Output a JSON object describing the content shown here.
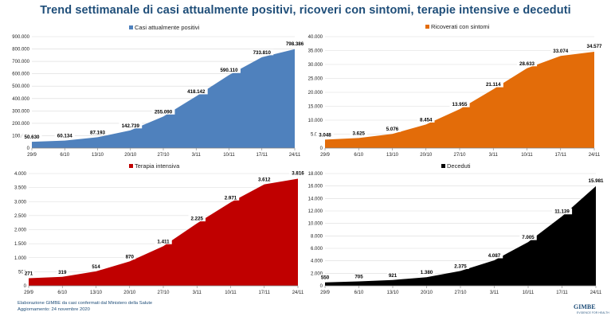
{
  "title": "Trend settimanale di casi attualmente positivi, ricoveri con sintomi, terapie intensive e deceduti",
  "footer": {
    "line1": "Elaborazione GIMBE da casi confermati dal Ministero della Salute",
    "line2": "Aggiornamento:  24 novembre 2020"
  },
  "logo": {
    "text": "GIMBE",
    "sub": "EVIDENCE FOR HEALTH"
  },
  "chart_data": [
    {
      "type": "area",
      "series_name": "Casi attualmente positivi",
      "color": "#4f81bd",
      "categories": [
        "29/9",
        "6/10",
        "13/10",
        "20/10",
        "27/10",
        "3/11",
        "10/11",
        "17/11",
        "24/11"
      ],
      "values": [
        50630,
        60134,
        87193,
        142739,
        255090,
        418142,
        590110,
        733810,
        798386
      ],
      "value_labels": [
        "50.630",
        "60.134",
        "87.193",
        "142.739",
        "255.090",
        "418.142",
        "590.110",
        "733.810",
        "798.386"
      ],
      "ylim": [
        0,
        900000
      ],
      "yticks": [
        0,
        100000,
        200000,
        300000,
        400000,
        500000,
        600000,
        700000,
        800000,
        900000
      ],
      "ytick_labels": [
        "0",
        "100.000",
        "200.000",
        "300.000",
        "400.000",
        "500.000",
        "600.000",
        "700.000",
        "800.000",
        "900.000"
      ]
    },
    {
      "type": "area",
      "series_name": "Ricoverati con sintomi",
      "color": "#e36c09",
      "categories": [
        "29/9",
        "6/10",
        "13/10",
        "20/10",
        "27/10",
        "3/11",
        "10/11",
        "17/11",
        "24/11"
      ],
      "values": [
        3048,
        3625,
        5076,
        8454,
        13955,
        21114,
        28633,
        33074,
        34577
      ],
      "value_labels": [
        "3.048",
        "3.625",
        "5.076",
        "8.454",
        "13.955",
        "21.114",
        "28.633",
        "33.074",
        "34.577"
      ],
      "ylim": [
        0,
        40000
      ],
      "yticks": [
        0,
        5000,
        10000,
        15000,
        20000,
        25000,
        30000,
        35000,
        40000
      ],
      "ytick_labels": [
        "0",
        "5.000",
        "10.000",
        "15.000",
        "20.000",
        "25.000",
        "30.000",
        "35.000",
        "40.000"
      ]
    },
    {
      "type": "area",
      "series_name": "Terapia intensiva",
      "color": "#c00000",
      "categories": [
        "29/9",
        "6/10",
        "13/10",
        "20/10",
        "27/10",
        "3/11",
        "10/11",
        "17/11",
        "24/11"
      ],
      "values": [
        271,
        319,
        514,
        870,
        1411,
        2225,
        2971,
        3612,
        3816
      ],
      "value_labels": [
        "271",
        "319",
        "514",
        "870",
        "1.411",
        "2.225",
        "2.971",
        "3.612",
        "3.816"
      ],
      "ylim": [
        0,
        4000
      ],
      "yticks": [
        0,
        500,
        1000,
        1500,
        2000,
        2500,
        3000,
        3500,
        4000
      ],
      "ytick_labels": [
        "0",
        "500",
        "1.000",
        "1.500",
        "2.000",
        "2.500",
        "3.000",
        "3.500",
        "4.000"
      ]
    },
    {
      "type": "area",
      "series_name": "Deceduti",
      "color": "#000000",
      "categories": [
        "29/9",
        "6/10",
        "13/10",
        "20/10",
        "27/10",
        "3/11",
        "10/11",
        "17/11",
        "24/11"
      ],
      "values": [
        550,
        705,
        921,
        1380,
        2375,
        4087,
        7005,
        11139,
        15981
      ],
      "value_labels": [
        "550",
        "705",
        "921",
        "1.380",
        "2.375",
        "4.087",
        "7.005",
        "11.139",
        "15.981"
      ],
      "ylim": [
        0,
        18000
      ],
      "yticks": [
        0,
        2000,
        4000,
        6000,
        8000,
        10000,
        12000,
        14000,
        16000,
        18000
      ],
      "ytick_labels": [
        "0",
        "2.000",
        "4.000",
        "6.000",
        "8.000",
        "10.000",
        "12.000",
        "14.000",
        "16.000",
        "18.000"
      ]
    }
  ]
}
